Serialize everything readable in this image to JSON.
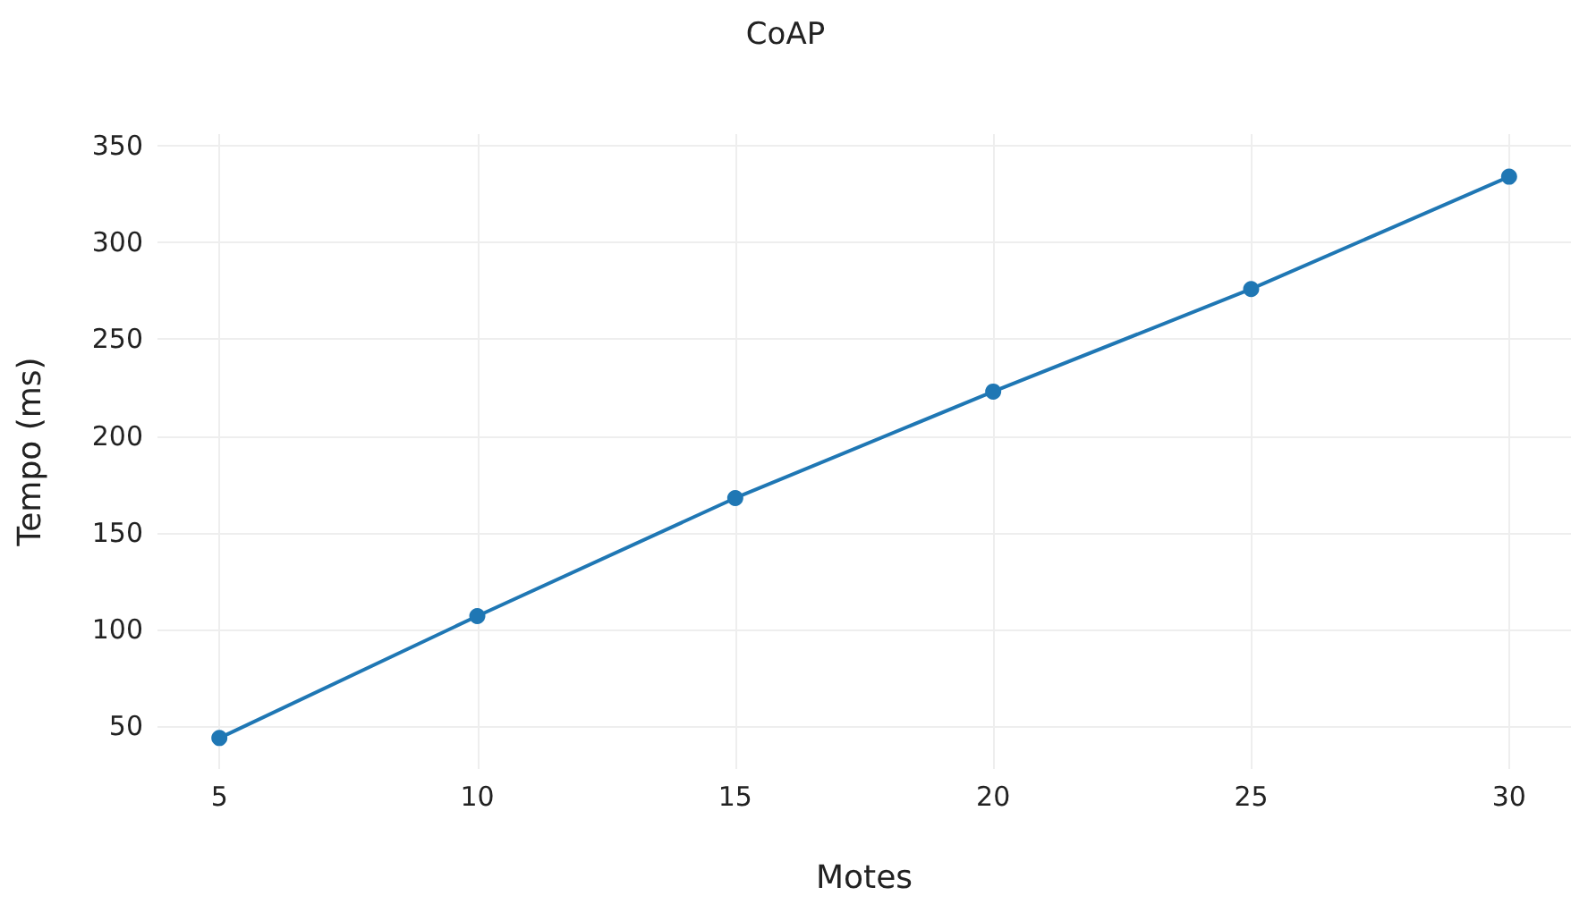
{
  "chart_data": {
    "type": "line",
    "title": "CoAP",
    "xlabel": "Motes",
    "ylabel": "Tempo (ms)",
    "x": [
      5,
      10,
      15,
      20,
      25,
      30
    ],
    "series": [
      {
        "color": "#1f77b4",
        "values": [
          44,
          107,
          168,
          223,
          276,
          334
        ]
      }
    ],
    "xlim": [
      3.8,
      31.2
    ],
    "xticks": [
      5,
      10,
      15,
      20,
      25,
      30
    ],
    "ylim": [
      28,
      356
    ],
    "yticks": [
      50,
      100,
      150,
      200,
      250,
      300,
      350
    ],
    "grid": true,
    "marker": "circle",
    "line_style": "solid"
  }
}
